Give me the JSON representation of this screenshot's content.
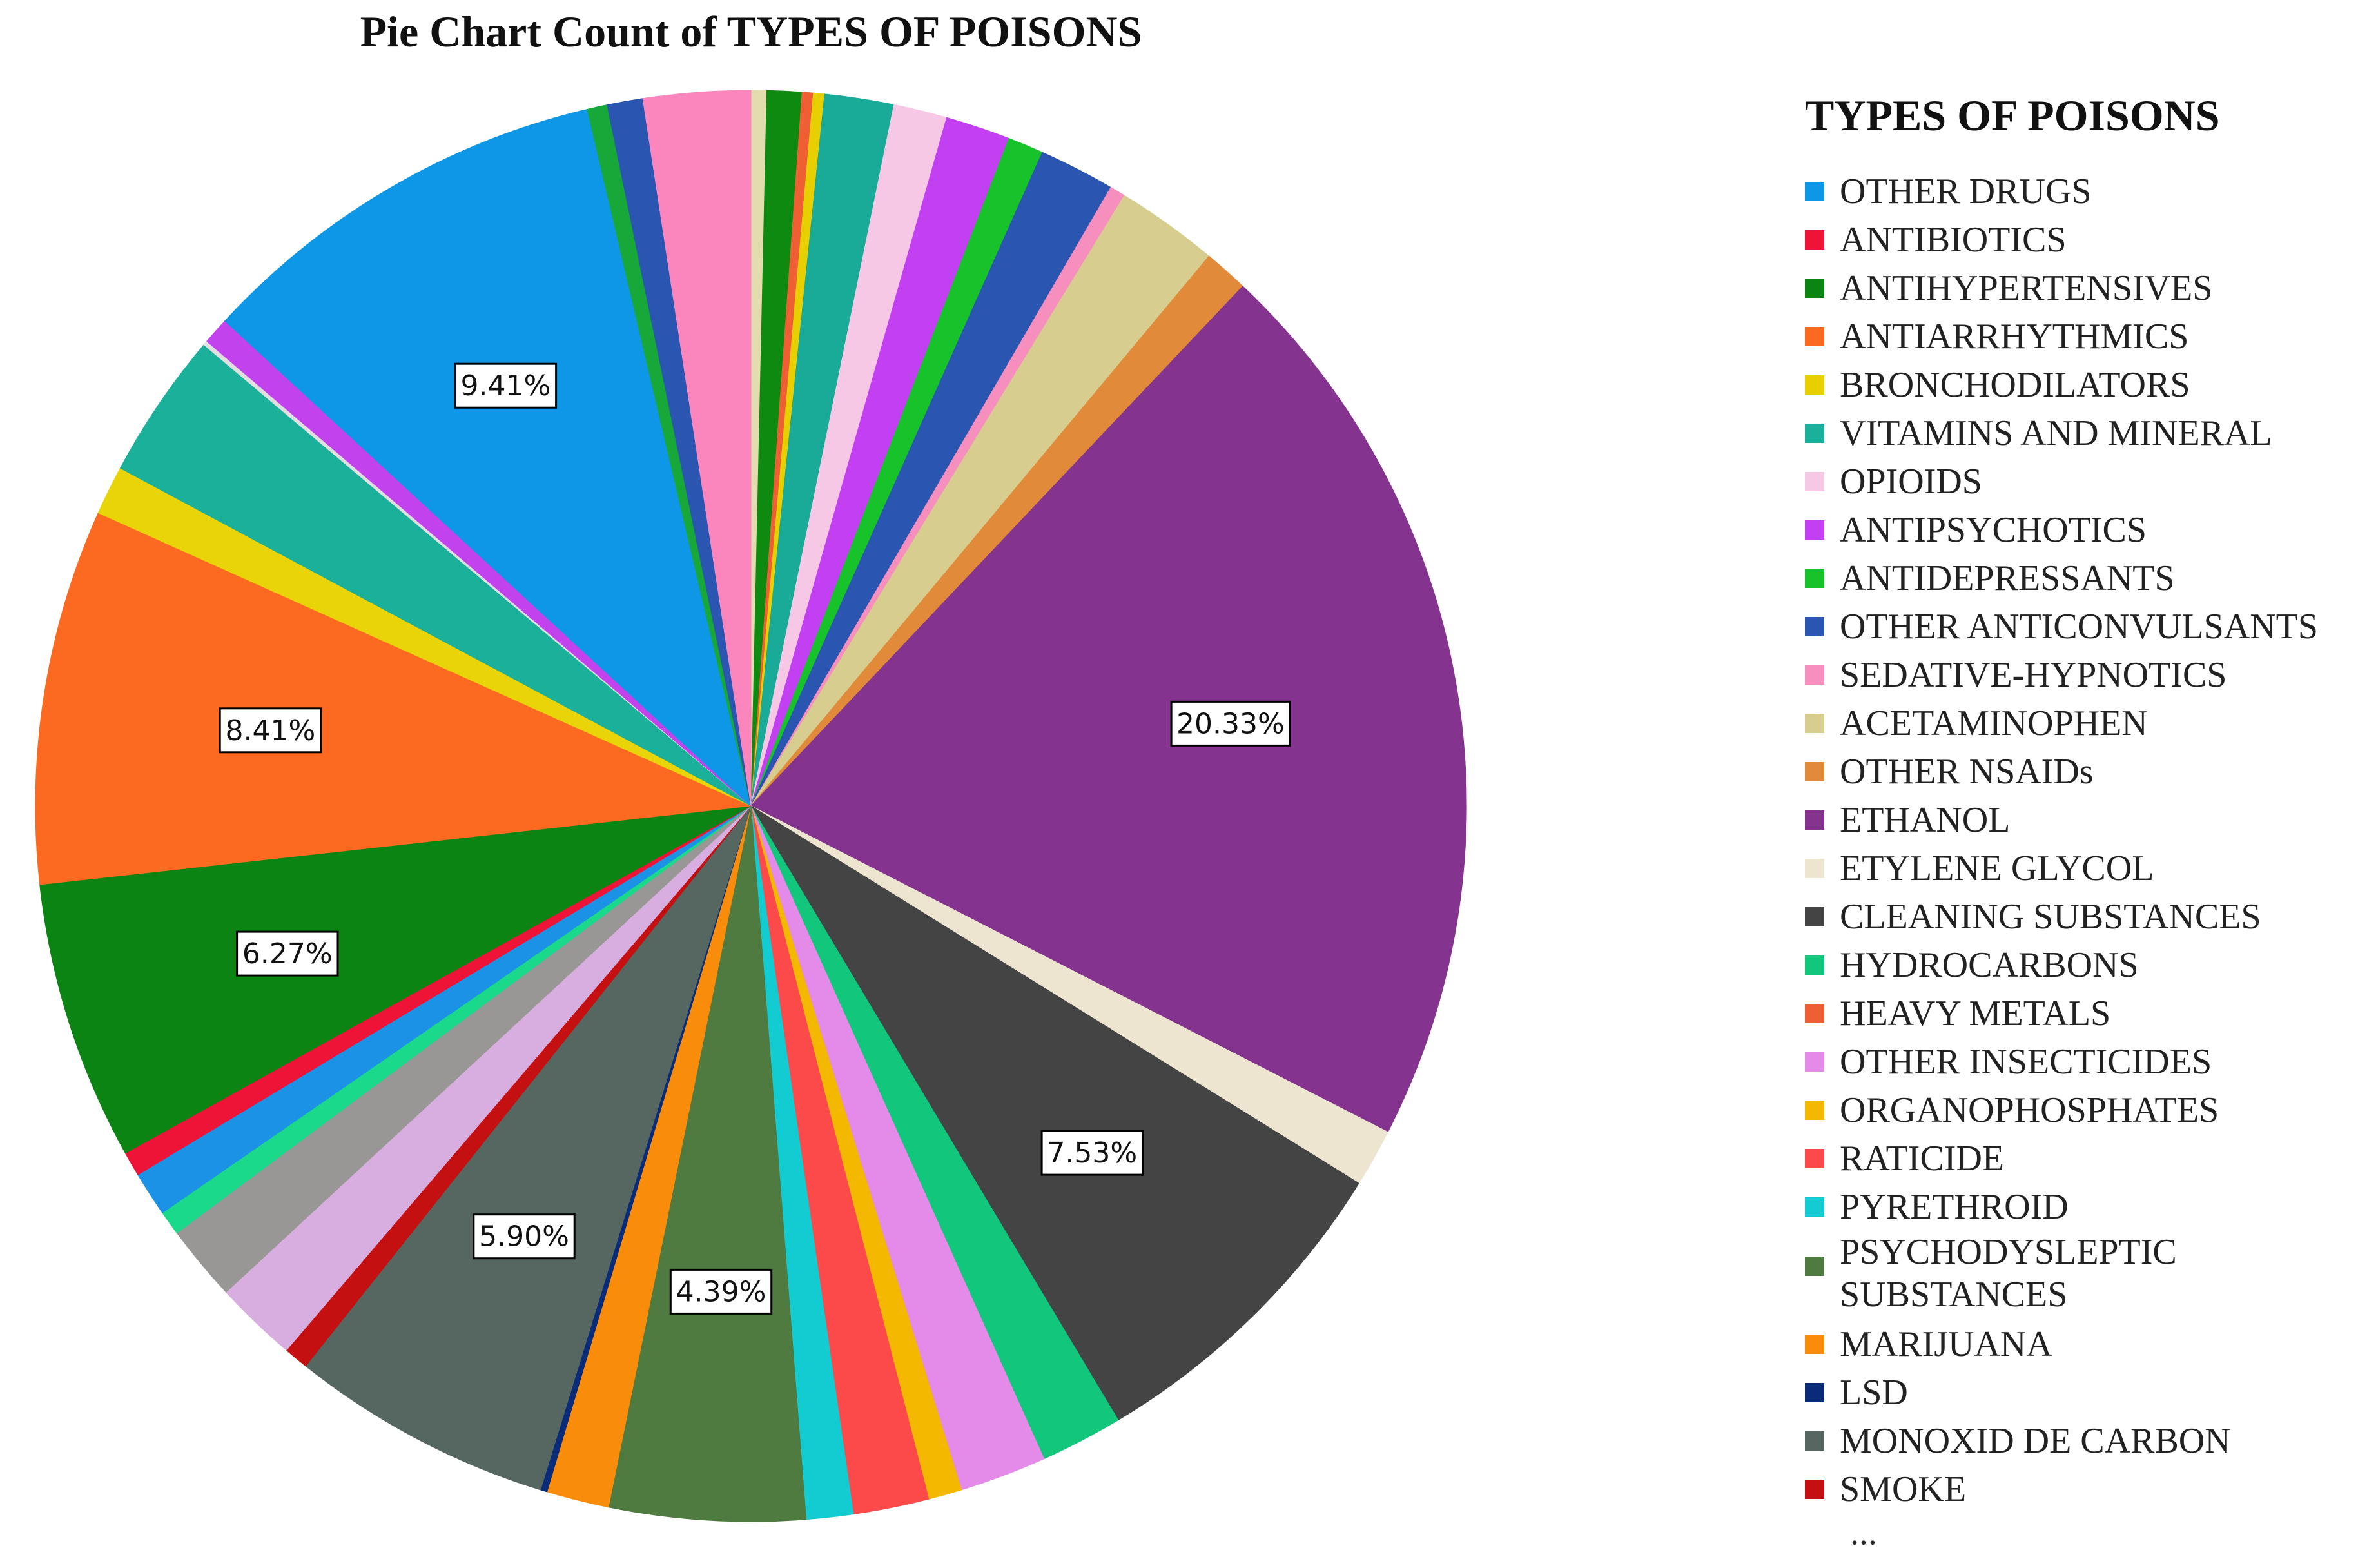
{
  "chart_data": {
    "type": "pie",
    "title": "Pie Chart Count of TYPES OF POISONS",
    "legend_title": "TYPES OF POISONS",
    "legend_position": "right",
    "legend_more": "...",
    "start_angle_deg": 0,
    "direction": "clockwise",
    "slices": [
      {
        "name": "",
        "value": 0.35,
        "color": "#e3dcae",
        "show": ""
      },
      {
        "name": "ANTIHYPERTENSIVES",
        "value": 0.78,
        "color": "#0e8a10",
        "show": ""
      },
      {
        "name": "HEAVY METALS",
        "value": 0.25,
        "color": "#ee6033",
        "show": ""
      },
      {
        "name": "BRONCHODILATORS",
        "value": 0.25,
        "color": "#e8d000",
        "show": ""
      },
      {
        "name": "VITAMINS AND MINERAL",
        "value": 1.55,
        "color": "#1aab98",
        "show": ""
      },
      {
        "name": "OPIOIDS",
        "value": 1.2,
        "color": "#f7c7e6",
        "show": ""
      },
      {
        "name": "ANTIPSYCHOTICS",
        "value": 1.45,
        "color": "#c340f2",
        "show": ""
      },
      {
        "name": "ANTIDEPRESSANTS",
        "value": 0.8,
        "color": "#17c22a",
        "show": ""
      },
      {
        "name": "OTHER ANTICONVULSANTS",
        "value": 1.7,
        "color": "#2a55b0",
        "show": ""
      },
      {
        "name": "SEDATIVE-HYPNOTICS",
        "value": 0.35,
        "color": "#f78fbe",
        "show": ""
      },
      {
        "name": "ACETAMINOPHEN",
        "value": 2.3,
        "color": "#d6cd8f",
        "show": ""
      },
      {
        "name": "OTHER NSAIDs",
        "value": 1.0,
        "color": "#e08a3a",
        "show": ""
      },
      {
        "name": "ETHANOL",
        "value": 20.33,
        "color": "#84348f",
        "show": "20.33%"
      },
      {
        "name": "ETYLENE GLYCOL",
        "value": 1.3,
        "color": "#ede5cf",
        "show": ""
      },
      {
        "name": "CLEANING SUBSTANCES",
        "value": 7.53,
        "color": "#444444",
        "show": "7.53%"
      },
      {
        "name": "HYDROCARBONS",
        "value": 1.85,
        "color": "#12c67c",
        "show": ""
      },
      {
        "name": "OTHER INSECTICIDES",
        "value": 1.95,
        "color": "#e48ae8",
        "show": ""
      },
      {
        "name": "ORGANOPHOSPHATES",
        "value": 0.75,
        "color": "#f5b800",
        "show": ""
      },
      {
        "name": "RATICIDE",
        "value": 1.7,
        "color": "#fc4a4a",
        "show": ""
      },
      {
        "name": "PYRETHROID",
        "value": 1.05,
        "color": "#13ccd2",
        "show": ""
      },
      {
        "name": "PSYCHODYSLEPTIC SUBSTANCES",
        "value": 4.39,
        "color": "#4f7a40",
        "show": "4.39%"
      },
      {
        "name": "MARIJUANA",
        "value": 1.4,
        "color": "#f98c0a",
        "show": ""
      },
      {
        "name": "LSD",
        "value": 0.15,
        "color": "#0a2a7a",
        "show": ""
      },
      {
        "name": "MONOXID DE CARBON",
        "value": 5.9,
        "color": "#556760",
        "show": "5.90%"
      },
      {
        "name": "SMOKE",
        "value": 0.55,
        "color": "#c41010",
        "show": ""
      },
      {
        "name": "",
        "value": 1.85,
        "color": "#d8aee0",
        "show": ""
      },
      {
        "name": "",
        "value": 1.7,
        "color": "#999795",
        "show": ""
      },
      {
        "name": "",
        "value": 0.55,
        "color": "#1ad98a",
        "show": ""
      },
      {
        "name": "",
        "value": 1.0,
        "color": "#1b92e6",
        "show": ""
      },
      {
        "name": "ANTIBIOTICS",
        "value": 0.55,
        "color": "#ee1438",
        "show": ""
      },
      {
        "name": "",
        "value": 6.27,
        "color": "#0c8413",
        "show": "6.27%"
      },
      {
        "name": "ANTIARRHYTHMICS",
        "value": 8.41,
        "color": "#fb6a20",
        "show": "8.41%"
      },
      {
        "name": "",
        "value": 1.1,
        "color": "#e8d408",
        "show": ""
      },
      {
        "name": "",
        "value": 3.3,
        "color": "#1ab09a",
        "show": ""
      },
      {
        "name": "",
        "value": 0.1,
        "color": "#e0e0e0",
        "show": ""
      },
      {
        "name": "",
        "value": 0.6,
        "color": "#c242ee",
        "show": ""
      },
      {
        "name": "OTHER DRUGS",
        "value": 9.41,
        "color": "#0d97e6",
        "show": "9.41%"
      },
      {
        "name": "",
        "value": 0.45,
        "color": "#18a83a",
        "show": ""
      },
      {
        "name": "",
        "value": 0.8,
        "color": "#2a55b0",
        "show": ""
      },
      {
        "name": "",
        "value": 2.4,
        "color": "#fa86bd",
        "show": ""
      }
    ],
    "legend": [
      {
        "label": "OTHER DRUGS",
        "color": "#0d97e6"
      },
      {
        "label": "ANTIBIOTICS",
        "color": "#ee1438"
      },
      {
        "label": "ANTIHYPERTENSIVES",
        "color": "#0c8413"
      },
      {
        "label": "ANTIARRHYTHMICS",
        "color": "#fb6a20"
      },
      {
        "label": "BRONCHODILATORS",
        "color": "#e8d000"
      },
      {
        "label": "VITAMINS AND MINERAL",
        "color": "#1ab09a"
      },
      {
        "label": "OPIOIDS",
        "color": "#f7c7e6"
      },
      {
        "label": "ANTIPSYCHOTICS",
        "color": "#c340f2"
      },
      {
        "label": "ANTIDEPRESSANTS",
        "color": "#17c22a"
      },
      {
        "label": "OTHER ANTICONVULSANTS",
        "color": "#2a55b0"
      },
      {
        "label": "SEDATIVE-HYPNOTICS",
        "color": "#f78fbe"
      },
      {
        "label": "ACETAMINOPHEN",
        "color": "#d6cd8f"
      },
      {
        "label": "OTHER NSAIDs",
        "color": "#e08a3a"
      },
      {
        "label": "ETHANOL",
        "color": "#84348f"
      },
      {
        "label": "ETYLENE GLYCOL",
        "color": "#ede5cf"
      },
      {
        "label": "CLEANING SUBSTANCES",
        "color": "#444444"
      },
      {
        "label": "HYDROCARBONS",
        "color": "#12c67c"
      },
      {
        "label": "HEAVY METALS",
        "color": "#ee6033"
      },
      {
        "label": "OTHER INSECTICIDES",
        "color": "#e48ae8"
      },
      {
        "label": "ORGANOPHOSPHATES",
        "color": "#f5b800"
      },
      {
        "label": "RATICIDE",
        "color": "#fc4a4a"
      },
      {
        "label": "PYRETHROID",
        "color": "#13ccd2"
      },
      {
        "label": "PSYCHODYSLEPTIC SUBSTANCES",
        "color": "#4f7a40"
      },
      {
        "label": "MARIJUANA",
        "color": "#f98c0a"
      },
      {
        "label": "LSD",
        "color": "#0a2a7a"
      },
      {
        "label": "MONOXID DE CARBON",
        "color": "#556760"
      },
      {
        "label": "SMOKE",
        "color": "#c41010"
      }
    ]
  }
}
